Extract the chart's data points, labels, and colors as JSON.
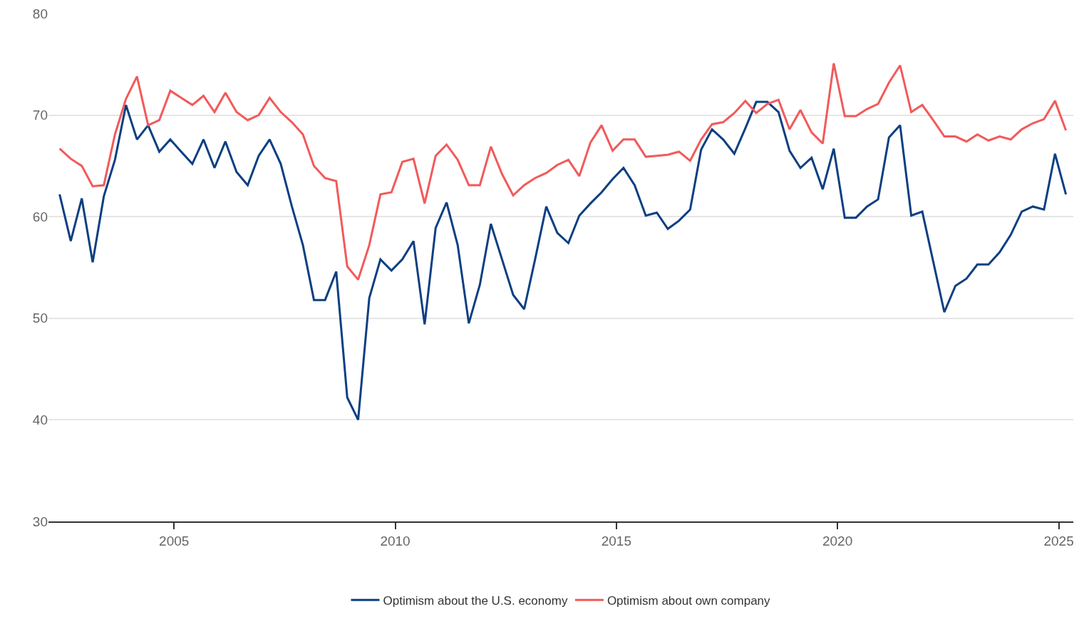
{
  "chart_data": {
    "type": "line",
    "x": [
      "2002-06",
      "2002-09",
      "2002-12",
      "2003-03",
      "2003-06",
      "2003-09",
      "2003-12",
      "2004-03",
      "2004-06",
      "2004-09",
      "2004-12",
      "2005-03",
      "2005-06",
      "2005-09",
      "2005-12",
      "2006-03",
      "2006-06",
      "2006-09",
      "2006-12",
      "2007-03",
      "2007-06",
      "2007-09",
      "2007-12",
      "2008-03",
      "2008-06",
      "2008-09",
      "2008-12",
      "2009-03",
      "2009-06",
      "2009-09",
      "2009-12",
      "2010-03",
      "2010-06",
      "2010-09",
      "2010-12",
      "2011-03",
      "2011-06",
      "2011-09",
      "2011-12",
      "2012-03",
      "2012-06",
      "2012-09",
      "2012-12",
      "2013-03",
      "2013-06",
      "2013-09",
      "2013-12",
      "2014-03",
      "2014-06",
      "2014-09",
      "2014-12",
      "2015-03",
      "2015-06",
      "2015-09",
      "2015-12",
      "2016-03",
      "2016-06",
      "2016-09",
      "2016-12",
      "2017-03",
      "2017-06",
      "2017-09",
      "2017-12",
      "2018-03",
      "2018-06",
      "2018-09",
      "2018-12",
      "2019-03",
      "2019-06",
      "2019-09",
      "2019-12",
      "2020-03",
      "2020-06",
      "2020-09",
      "2020-12",
      "2021-03",
      "2021-06",
      "2021-09",
      "2021-12",
      "2022-03",
      "2022-06",
      "2022-09",
      "2022-12",
      "2023-03",
      "2023-06",
      "2023-09",
      "2023-12",
      "2024-03",
      "2024-06",
      "2024-09",
      "2024-12",
      "2025-03"
    ],
    "series": [
      {
        "name": "Optimism about the U.S. economy",
        "color": "#0d3f82",
        "values": [
          62.2,
          57.6,
          61.8,
          55.5,
          62.0,
          65.6,
          71.0,
          67.6,
          69.0,
          66.4,
          67.6,
          66.4,
          65.2,
          67.6,
          64.8,
          67.4,
          64.4,
          63.1,
          66.0,
          67.6,
          65.2,
          61.0,
          57.2,
          51.8,
          51.8,
          54.6,
          42.2,
          40.0,
          52.0,
          55.8,
          54.7,
          55.8,
          57.6,
          49.4,
          58.9,
          61.4,
          57.2,
          49.5,
          53.3,
          59.3,
          55.8,
          52.3,
          50.9,
          55.8,
          61.0,
          58.4,
          57.4,
          60.1,
          61.3,
          62.4,
          63.7,
          64.8,
          63.1,
          60.1,
          60.4,
          58.8,
          59.6,
          60.7,
          66.6,
          68.6,
          67.6,
          66.2,
          68.7,
          71.3,
          71.3,
          70.3,
          66.5,
          64.8,
          65.8,
          62.7,
          66.7,
          59.9,
          59.9,
          61.0,
          61.7,
          67.8,
          69.0,
          60.1,
          60.5,
          55.6,
          50.6,
          53.2,
          53.9,
          55.3,
          55.3,
          56.5,
          58.2,
          60.5,
          61.0,
          60.7,
          66.2,
          62.2
        ]
      },
      {
        "name": "Optimism about own company",
        "color": "#f25a5a",
        "values": [
          66.7,
          65.7,
          65.0,
          63.0,
          63.1,
          68.1,
          71.6,
          73.8,
          69.0,
          69.5,
          72.4,
          71.7,
          71.0,
          71.9,
          70.3,
          72.2,
          70.3,
          69.5,
          70.0,
          71.7,
          70.3,
          69.3,
          68.1,
          65.0,
          63.8,
          63.5,
          55.1,
          53.8,
          57.2,
          62.2,
          62.4,
          65.4,
          65.7,
          61.3,
          66.0,
          67.1,
          65.6,
          63.1,
          63.1,
          66.9,
          64.2,
          62.1,
          63.1,
          63.8,
          64.3,
          65.1,
          65.6,
          64.0,
          67.3,
          69.0,
          66.5,
          67.6,
          67.6,
          65.9,
          66.0,
          66.1,
          66.4,
          65.5,
          67.6,
          69.1,
          69.3,
          70.2,
          71.4,
          70.2,
          71.1,
          71.5,
          68.6,
          70.5,
          68.3,
          67.2,
          75.1,
          69.9,
          69.9,
          70.6,
          71.1,
          73.2,
          74.9,
          70.3,
          71.0,
          69.5,
          67.9,
          67.9,
          67.4,
          68.1,
          67.5,
          67.9,
          67.6,
          68.6,
          69.2,
          69.6,
          71.4,
          68.5
        ]
      }
    ],
    "xlim": [
      "2002-03",
      "2025-05"
    ],
    "xticks": [
      {
        "value": "2005",
        "label": "2005"
      },
      {
        "value": "2010",
        "label": "2010"
      },
      {
        "value": "2015",
        "label": "2015"
      },
      {
        "value": "2020",
        "label": "2020"
      },
      {
        "value": "2025",
        "label": "2025"
      }
    ],
    "ylim": [
      30,
      80
    ],
    "yticks": [
      30,
      40,
      50,
      60,
      70,
      80
    ],
    "grid": "y",
    "legend": "bottom",
    "marker": "none",
    "line_style": "solid"
  }
}
